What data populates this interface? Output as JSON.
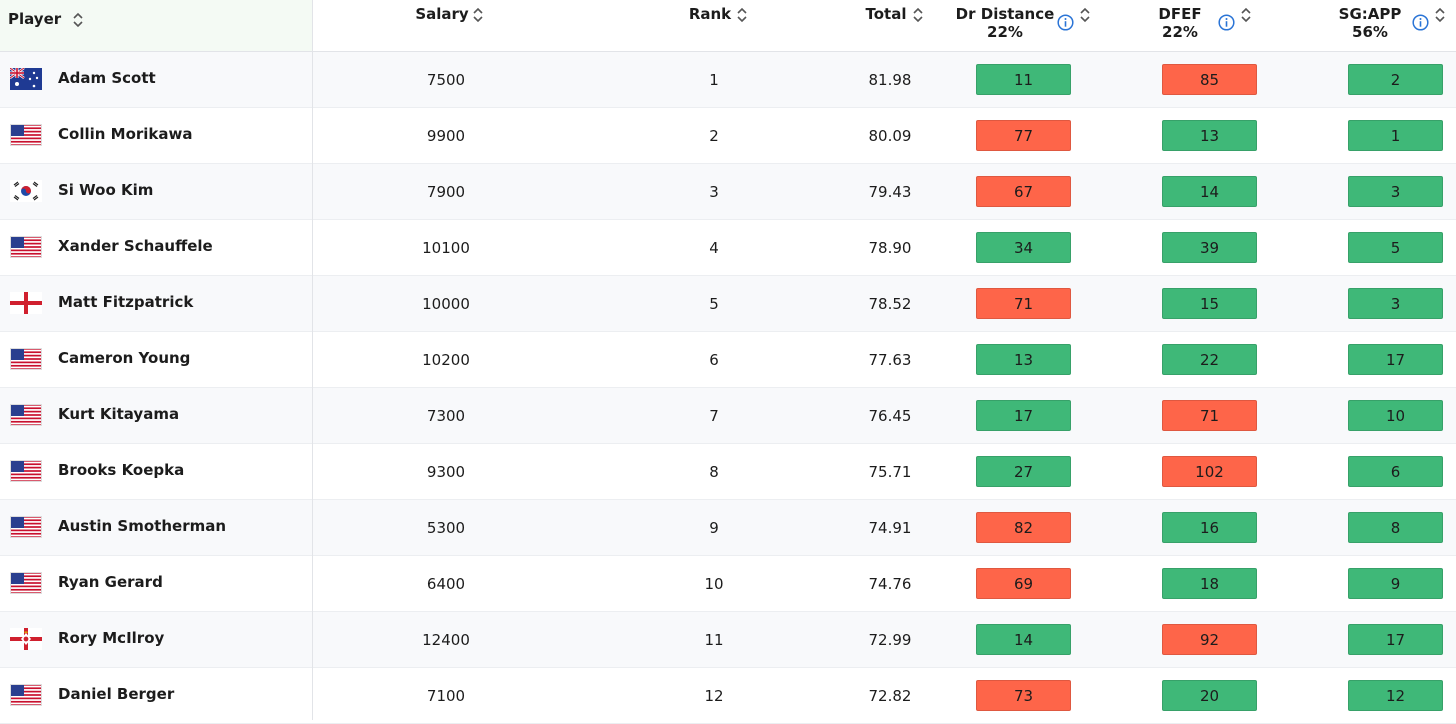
{
  "header": {
    "columns": [
      {
        "label": "Player"
      },
      {
        "label": "Salary"
      },
      {
        "label": "Rank"
      },
      {
        "label": "Total"
      },
      {
        "label": "Dr Distance",
        "weight": "22%"
      },
      {
        "label": "DFEF",
        "weight": "22%"
      },
      {
        "label": "SG:APP",
        "weight": "56%"
      }
    ]
  },
  "colors": {
    "good": "#3fb878",
    "bad": "#fe6549"
  },
  "rows": [
    {
      "player": "Adam Scott",
      "salary": 7500,
      "rank": 1,
      "total": "81.98",
      "stats": [
        {
          "value": 11,
          "rating": "good"
        },
        {
          "value": 85,
          "rating": "bad"
        },
        {
          "value": 2,
          "rating": "good"
        }
      ]
    },
    {
      "player": "Collin Morikawa",
      "salary": 9900,
      "rank": 2,
      "total": "80.09",
      "stats": [
        {
          "value": 77,
          "rating": "bad"
        },
        {
          "value": 13,
          "rating": "good"
        },
        {
          "value": 1,
          "rating": "good"
        }
      ]
    },
    {
      "player": "Si Woo Kim",
      "salary": 7900,
      "rank": 3,
      "total": "79.43",
      "stats": [
        {
          "value": 67,
          "rating": "bad"
        },
        {
          "value": 14,
          "rating": "good"
        },
        {
          "value": 3,
          "rating": "good"
        }
      ]
    },
    {
      "player": "Xander Schauffele",
      "salary": 10100,
      "rank": 4,
      "total": "78.90",
      "stats": [
        {
          "value": 34,
          "rating": "good"
        },
        {
          "value": 39,
          "rating": "good"
        },
        {
          "value": 5,
          "rating": "good"
        }
      ]
    },
    {
      "player": "Matt Fitzpatrick",
      "salary": 10000,
      "rank": 5,
      "total": "78.52",
      "stats": [
        {
          "value": 71,
          "rating": "bad"
        },
        {
          "value": 15,
          "rating": "good"
        },
        {
          "value": 3,
          "rating": "good"
        }
      ]
    },
    {
      "player": "Cameron Young",
      "salary": 10200,
      "rank": 6,
      "total": "77.63",
      "stats": [
        {
          "value": 13,
          "rating": "good"
        },
        {
          "value": 22,
          "rating": "good"
        },
        {
          "value": 17,
          "rating": "good"
        }
      ]
    },
    {
      "player": "Kurt Kitayama",
      "salary": 7300,
      "rank": 7,
      "total": "76.45",
      "stats": [
        {
          "value": 17,
          "rating": "good"
        },
        {
          "value": 71,
          "rating": "bad"
        },
        {
          "value": 10,
          "rating": "good"
        }
      ]
    },
    {
      "player": "Brooks Koepka",
      "salary": 9300,
      "rank": 8,
      "total": "75.71",
      "stats": [
        {
          "value": 27,
          "rating": "good"
        },
        {
          "value": 102,
          "rating": "bad"
        },
        {
          "value": 6,
          "rating": "good"
        }
      ]
    },
    {
      "player": "Austin Smotherman",
      "salary": 5300,
      "rank": 9,
      "total": "74.91",
      "stats": [
        {
          "value": 82,
          "rating": "bad"
        },
        {
          "value": 16,
          "rating": "good"
        },
        {
          "value": 8,
          "rating": "good"
        }
      ]
    },
    {
      "player": "Ryan Gerard",
      "salary": 6400,
      "rank": 10,
      "total": "74.76",
      "stats": [
        {
          "value": 69,
          "rating": "bad"
        },
        {
          "value": 18,
          "rating": "good"
        },
        {
          "value": 9,
          "rating": "good"
        }
      ]
    },
    {
      "player": "Rory McIlroy",
      "salary": 12400,
      "rank": 11,
      "total": "72.99",
      "stats": [
        {
          "value": 14,
          "rating": "good"
        },
        {
          "value": 92,
          "rating": "bad"
        },
        {
          "value": 17,
          "rating": "good"
        }
      ]
    },
    {
      "player": "Daniel Berger",
      "salary": 7100,
      "rank": 12,
      "total": "72.82",
      "stats": [
        {
          "value": 73,
          "rating": "bad"
        },
        {
          "value": 20,
          "rating": "good"
        },
        {
          "value": 12,
          "rating": "good"
        }
      ]
    }
  ]
}
